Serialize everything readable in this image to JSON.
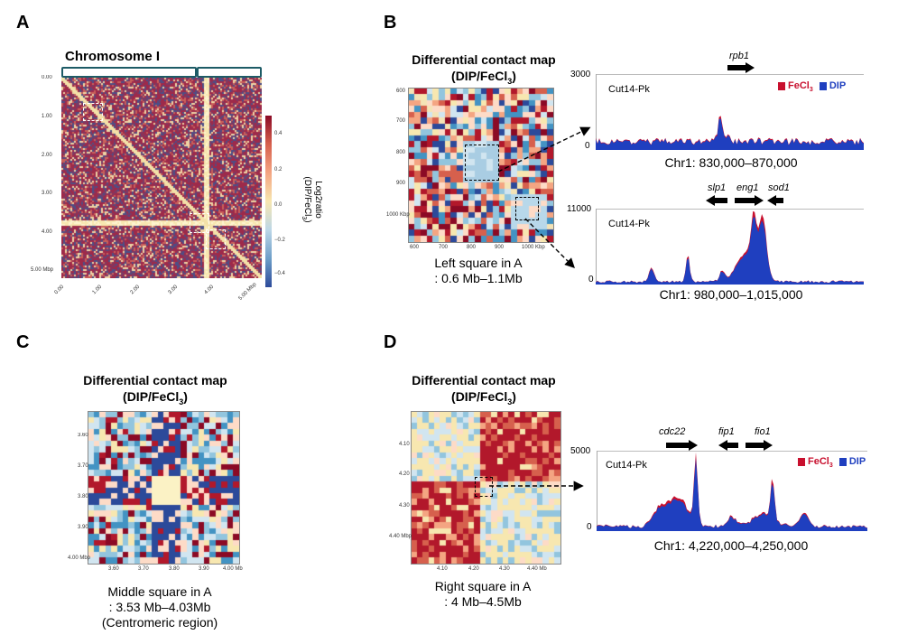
{
  "panels": {
    "A": {
      "letter": "A",
      "title": "Chromosome I",
      "y_ticks": [
        "0.00",
        "1.00",
        "2.00",
        "3.00",
        "4.00",
        "5.00  Mbp"
      ],
      "x_ticks": [
        "0.00",
        "1.00",
        "2.00",
        "3.00",
        "4.00",
        "5.00  Mbp"
      ],
      "colorbar_ticks": [
        "0.4",
        "0.2",
        "0.0",
        "−0.2",
        "−0.4"
      ],
      "colorbar_label_1": "Log2ratio",
      "colorbar_label_2": "(DIP/FeCl",
      "colorbar_label_3": "3",
      "colorbar_label_4": ")"
    },
    "B": {
      "letter": "B",
      "map_title_1": "Differential contact map",
      "map_title_2": "(DIP/FeCl",
      "map_title_sub": "3",
      "map_title_end": ")",
      "y_ticks": [
        "600",
        "700",
        "800",
        "900",
        "1000 Kbp"
      ],
      "x_ticks": [
        "600",
        "700",
        "800",
        "900",
        "1000 Kbp"
      ],
      "caption_1": "Left square in A",
      "caption_2": ": 0.6 Mb–1.1Mb",
      "track1": {
        "gene": "rpb1",
        "ymax": "3000",
        "ymin": "0",
        "sample": "Cut14-Pk",
        "legend_fecl": "FeCl",
        "legend_fecl_sub": "3",
        "legend_dip": "DIP",
        "coords": "Chr1: 830,000–870,000"
      },
      "track2": {
        "genes": [
          "slp1",
          "eng1",
          "sod1"
        ],
        "ymax": "11000",
        "ymin": "0",
        "sample": "Cut14-Pk",
        "coords": "Chr1: 980,000–1,015,000"
      }
    },
    "C": {
      "letter": "C",
      "map_title_1": "Differential contact map",
      "map_title_2": "(DIP/FeCl",
      "map_title_sub": "3",
      "map_title_end": ")",
      "y_ticks": [
        "3.60",
        "3.70",
        "3.80",
        "3.90",
        "4.00  Mbp"
      ],
      "x_ticks": [
        "3.60",
        "3.70",
        "3.80",
        "3.90",
        "4.00  Mb"
      ],
      "caption_1": "Middle square in A",
      "caption_2": ": 3.53 Mb–4.03Mb",
      "caption_3": "(Centromeric region)"
    },
    "D": {
      "letter": "D",
      "map_title_1": "Differential contact map",
      "map_title_2": "(DIP/FeCl",
      "map_title_sub": "3",
      "map_title_end": ")",
      "y_ticks": [
        "4.10",
        "4.20",
        "4.30",
        "4.40  Mbp"
      ],
      "x_ticks": [
        "4.10",
        "4.20",
        "4.30",
        "4.40  Mb"
      ],
      "caption_1": "Right square in A",
      "caption_2": ": 4 Mb–4.5Mb",
      "track": {
        "genes": [
          "cdc22",
          "fip1",
          "fio1"
        ],
        "ymax": "5000",
        "ymin": "0",
        "sample": "Cut14-Pk",
        "legend_fecl": "FeCl",
        "legend_fecl_sub": "3",
        "legend_dip": "DIP",
        "coords": "Chr1: 4,220,000–4,250,000"
      }
    }
  },
  "colors": {
    "fecl_red": "#c8102e",
    "dip_blue": "#1f3fbf",
    "heat_red": "#b2182b",
    "heat_blue": "#2c4a9a",
    "heat_cream": "#f7e7b0"
  }
}
